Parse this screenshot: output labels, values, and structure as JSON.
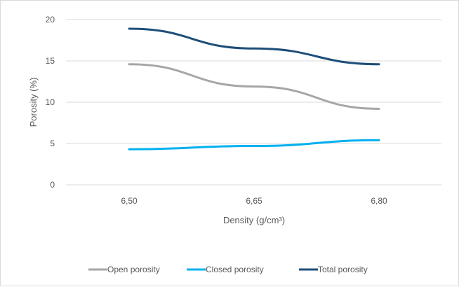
{
  "chart_data": {
    "type": "line",
    "title": "",
    "xlabel": "Density (g/cm³)",
    "ylabel": "Porosity (%)",
    "categories": [
      "6,50",
      "6,65",
      "6,80"
    ],
    "ylim": [
      0,
      20
    ],
    "yticks": [
      "0",
      "5",
      "10",
      "15",
      "20"
    ],
    "grid": true,
    "legend_position": "bottom",
    "series": [
      {
        "name": "Open porosity",
        "values": [
          14.6,
          11.9,
          9.2
        ],
        "color": "#a6a6a6"
      },
      {
        "name": "Closed porosity",
        "values": [
          4.3,
          4.7,
          5.4
        ],
        "color": "#00b0f0"
      },
      {
        "name": "Total porosity",
        "values": [
          18.9,
          16.5,
          14.6
        ],
        "color": "#1f4e79"
      }
    ]
  }
}
